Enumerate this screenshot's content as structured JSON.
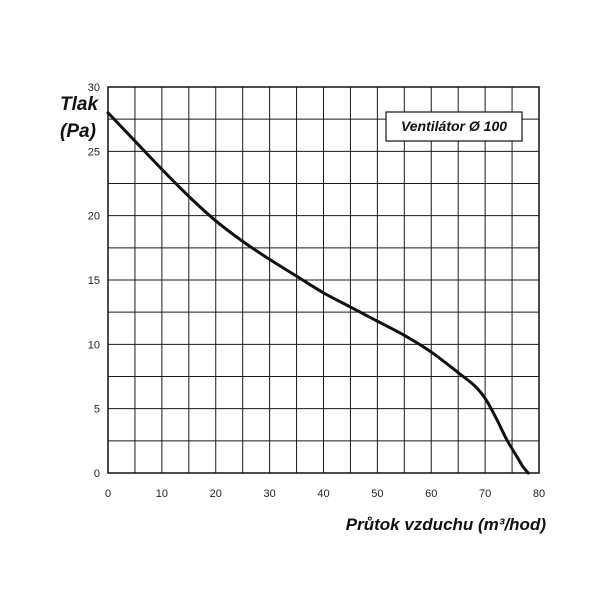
{
  "chart_data": {
    "type": "line",
    "xlabel": "Průtok vzduchu (m³/hod)",
    "ylabel_line1": "Tlak",
    "ylabel_line2": "(Pa)",
    "legend_label": "Ventilátor Ø 100",
    "legend_position": "top-right",
    "grid": true,
    "xlim": [
      0,
      80
    ],
    "ylim": [
      0,
      30
    ],
    "x_ticks": [
      0,
      10,
      20,
      30,
      40,
      50,
      60,
      70,
      80
    ],
    "y_ticks": [
      0,
      5,
      10,
      15,
      20,
      25,
      30
    ],
    "series": [
      {
        "x": [
          0,
          5,
          10,
          15,
          20,
          25,
          30,
          35,
          40,
          45,
          50,
          55,
          60,
          65,
          68,
          70,
          72,
          74,
          76,
          77,
          78
        ],
        "y": [
          28.0,
          25.8,
          23.6,
          21.5,
          19.6,
          18.0,
          16.6,
          15.3,
          14.0,
          12.9,
          11.8,
          10.7,
          9.4,
          7.8,
          6.8,
          5.8,
          4.3,
          2.6,
          1.2,
          0.5,
          0
        ]
      }
    ]
  }
}
